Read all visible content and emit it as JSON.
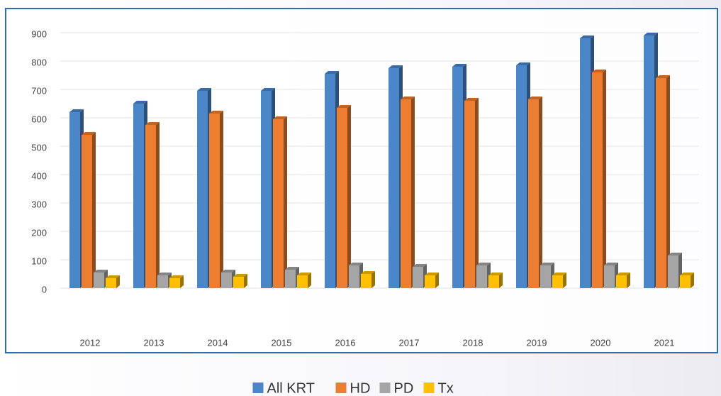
{
  "chart_data": {
    "type": "bar",
    "categories": [
      "2012",
      "2013",
      "2014",
      "2015",
      "2016",
      "2017",
      "2018",
      "2019",
      "2020",
      "2021"
    ],
    "series": [
      {
        "name": "All KRT",
        "color": "#4a86c8",
        "values": [
          620,
          650,
          695,
          695,
          755,
          775,
          780,
          785,
          880,
          890
        ]
      },
      {
        "name": "HD",
        "color": "#ed7d31",
        "values": [
          540,
          575,
          615,
          595,
          635,
          665,
          660,
          665,
          760,
          740
        ]
      },
      {
        "name": "PD",
        "color": "#a5a5a5",
        "values": [
          55,
          45,
          55,
          65,
          80,
          75,
          80,
          80,
          80,
          115
        ]
      },
      {
        "name": "Tx",
        "color": "#ffc000",
        "values": [
          35,
          35,
          40,
          45,
          50,
          45,
          45,
          45,
          45,
          45
        ]
      }
    ],
    "ylim": [
      0,
      900
    ],
    "yticks": [
      0,
      100,
      200,
      300,
      400,
      500,
      600,
      700,
      800,
      900
    ],
    "grid": true,
    "legend": "bottom"
  }
}
